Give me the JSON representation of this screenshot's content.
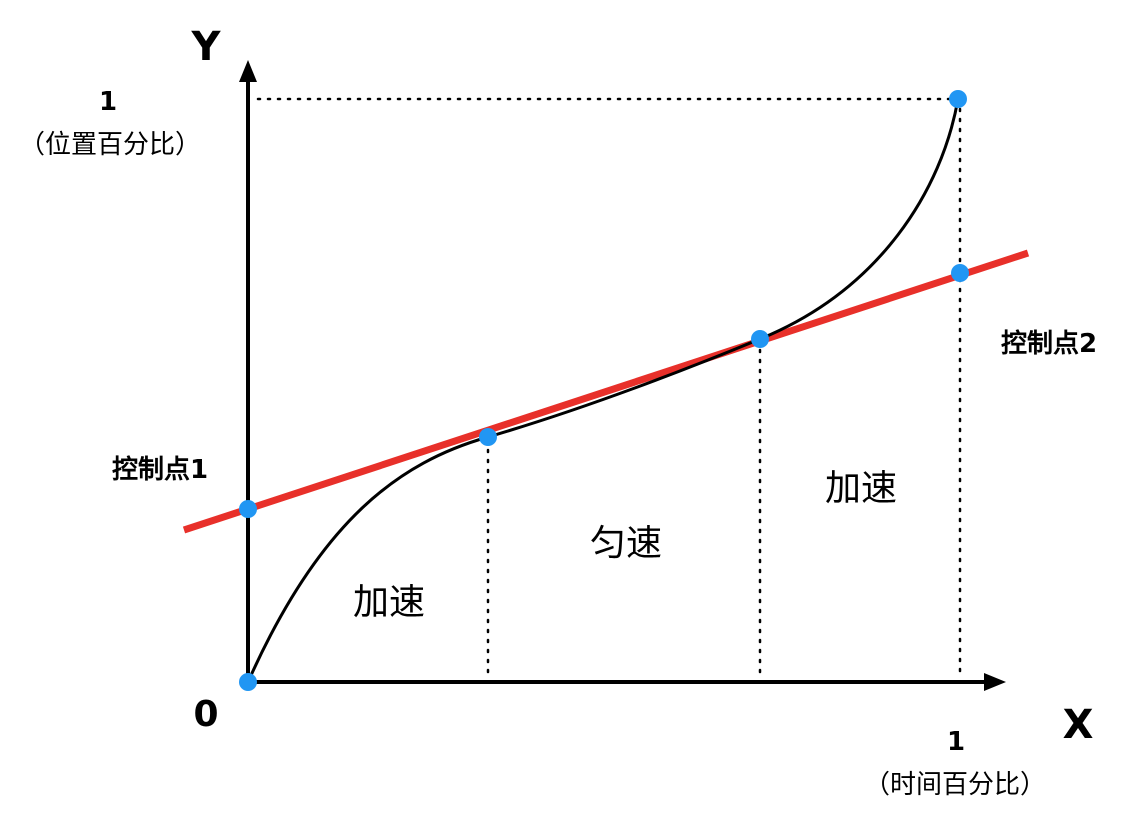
{
  "axes": {
    "x_letter": "X",
    "y_letter": "Y",
    "origin": "0",
    "x_tick": "1",
    "x_unit": "（时间百分比）",
    "y_tick": "1",
    "y_unit": "（位置百分比）"
  },
  "control_points": {
    "p1_label": "控制点1",
    "p2_label": "控制点2"
  },
  "regions": {
    "first": "加速",
    "middle": "匀速",
    "last": "加速"
  },
  "colors": {
    "tangent_line": "#e8302a",
    "points": "#2196f3",
    "curve": "#000000",
    "axis": "#000000"
  }
}
